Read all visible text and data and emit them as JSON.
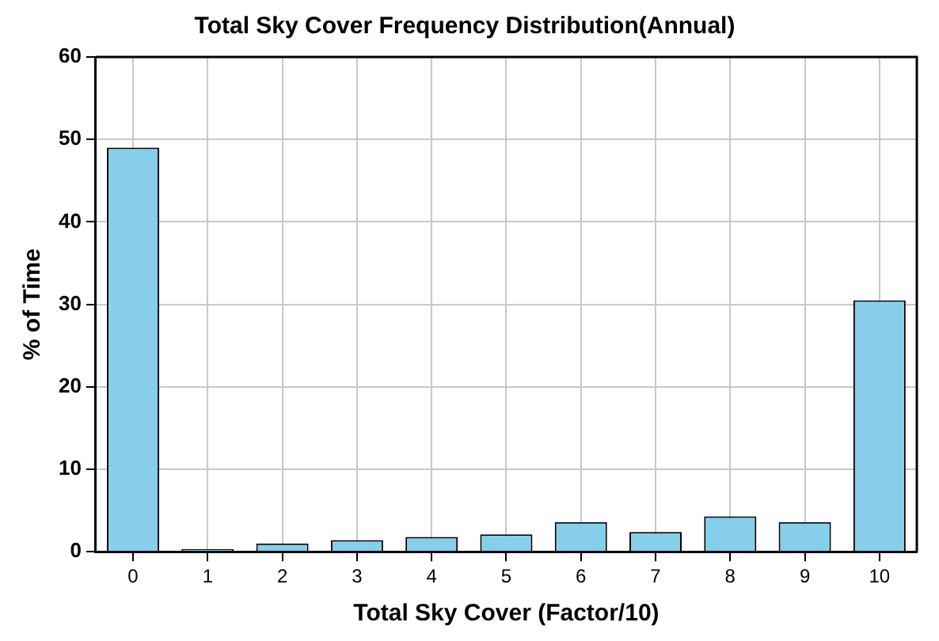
{
  "chart_data": {
    "type": "bar",
    "title": "Total Sky Cover Frequency Distribution(Annual)",
    "xlabel": "Total Sky Cover (Factor/10)",
    "ylabel": "% of Time",
    "categories": [
      "0",
      "1",
      "2",
      "3",
      "4",
      "5",
      "6",
      "7",
      "8",
      "9",
      "10"
    ],
    "values": [
      49,
      0.3,
      1,
      1.4,
      1.8,
      2.1,
      3.6,
      2.4,
      4.3,
      3.6,
      30.5
    ],
    "color": "#87ceeb",
    "ylim": [
      0,
      60
    ],
    "yticks": [
      0,
      10,
      20,
      30,
      40,
      50,
      60
    ],
    "grid": true
  }
}
